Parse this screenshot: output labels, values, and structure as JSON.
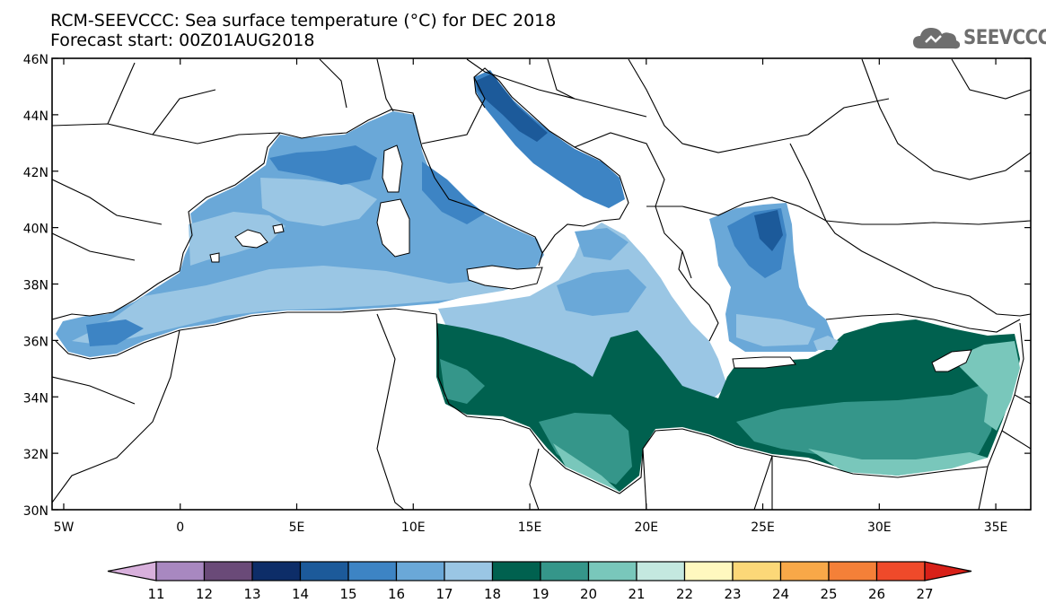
{
  "header": {
    "title_line1": "RCM-SEEVCCC: Sea surface temperature (°C) for DEC 2018",
    "title_line2": "Forecast start: 00Z01AUG2018",
    "logo_text": "SEEVCCC"
  },
  "map": {
    "lat_labels": [
      "46N",
      "44N",
      "42N",
      "40N",
      "38N",
      "36N",
      "34N",
      "32N",
      "30N"
    ],
    "lon_labels": [
      "5W",
      "0",
      "5E",
      "10E",
      "15E",
      "20E",
      "25E",
      "30E",
      "35E"
    ],
    "lat_values": [
      46,
      44,
      42,
      40,
      38,
      36,
      34,
      32,
      30
    ],
    "lon_values": [
      -5,
      0,
      5,
      10,
      15,
      20,
      25,
      30,
      35
    ],
    "lon_range": [
      -5.5,
      36.5
    ],
    "lat_range": [
      30,
      46
    ]
  },
  "colorbar": {
    "labels": [
      "11",
      "12",
      "13",
      "14",
      "15",
      "16",
      "17",
      "18",
      "19",
      "20",
      "21",
      "22",
      "23",
      "24",
      "25",
      "26",
      "27"
    ],
    "colors": [
      "#d8b0dc",
      "#a888c0",
      "#6a4a78",
      "#0d2d68",
      "#1c5a9a",
      "#3d84c4",
      "#6aa8d8",
      "#9ac6e4",
      "#00614f",
      "#35968a",
      "#79c7bb",
      "#c4e8e0",
      "#fff8bf",
      "#fcd878",
      "#f8a848",
      "#f48038",
      "#ef4a2a",
      "#d82018"
    ]
  },
  "colors": {
    "land": "#ffffff",
    "border": "#000000"
  }
}
